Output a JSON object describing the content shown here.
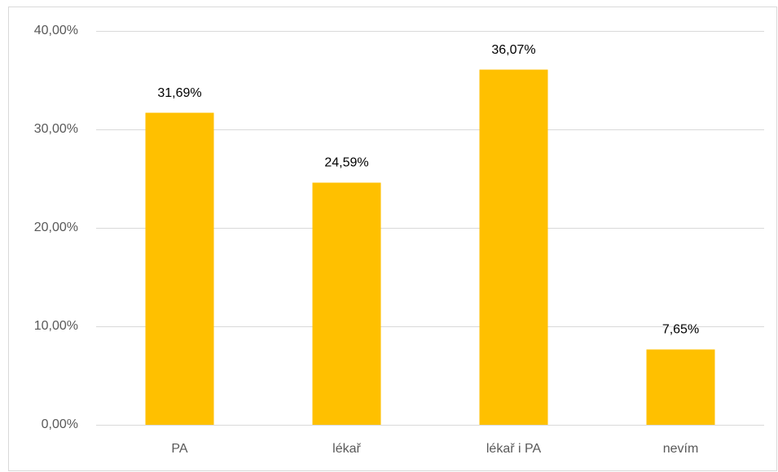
{
  "chart_data": {
    "type": "bar",
    "categories": [
      "PA",
      "lékař",
      "lékař i PA",
      "nevím"
    ],
    "values": [
      31.69,
      24.59,
      36.07,
      7.65
    ],
    "value_labels": [
      "31,69%",
      "24,59%",
      "36,07%",
      "7,65%"
    ],
    "color": "#ffc000",
    "ylim": [
      0,
      40
    ],
    "yticks": [
      {
        "value": 0,
        "label": "0,00%"
      },
      {
        "value": 10,
        "label": "10,00%"
      },
      {
        "value": 20,
        "label": "20,00%"
      },
      {
        "value": 30,
        "label": "30,00%"
      },
      {
        "value": 40,
        "label": "40,00%"
      }
    ],
    "grid": true
  }
}
